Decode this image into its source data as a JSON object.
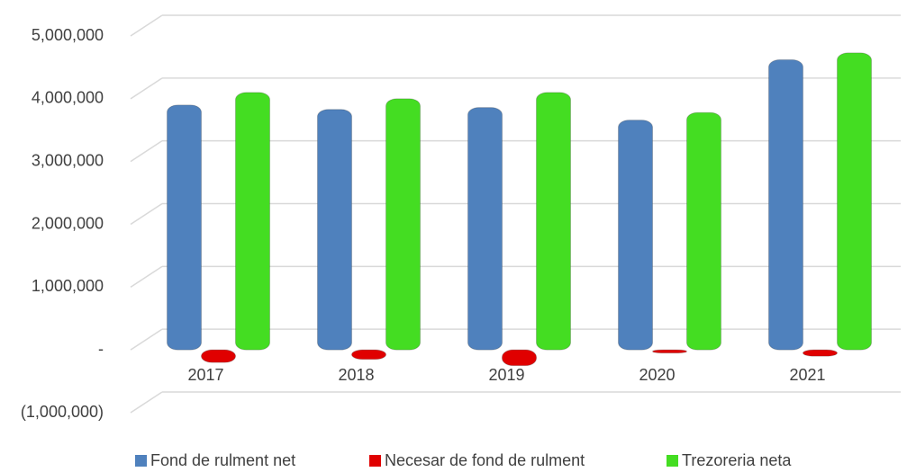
{
  "chart_data": {
    "type": "bar",
    "categories": [
      "2017",
      "2018",
      "2019",
      "2020",
      "2021"
    ],
    "series": [
      {
        "name": "Fond de rulment net",
        "color": "#4f81bd",
        "values": [
          3900000,
          3830000,
          3860000,
          3660000,
          4620000
        ]
      },
      {
        "name": "Necesar de fond de rulment",
        "color": "#e00000",
        "values": [
          -200000,
          -150000,
          -250000,
          -50000,
          -100000
        ]
      },
      {
        "name": "Trezoreria neta",
        "color": "#44dd22",
        "values": [
          4100000,
          4000000,
          4100000,
          3780000,
          4730000
        ]
      }
    ],
    "ylim": [
      -1000000,
      5000000
    ],
    "yticks": [
      {
        "value": -1000000,
        "label": "(1,000,000)"
      },
      {
        "value": 0,
        "label": "-"
      },
      {
        "value": 1000000,
        "label": "1,000,000"
      },
      {
        "value": 2000000,
        "label": "2,000,000"
      },
      {
        "value": 3000000,
        "label": "3,000,000"
      },
      {
        "value": 4000000,
        "label": "4,000,000"
      },
      {
        "value": 5000000,
        "label": "5,000,000"
      }
    ],
    "grid": true
  }
}
